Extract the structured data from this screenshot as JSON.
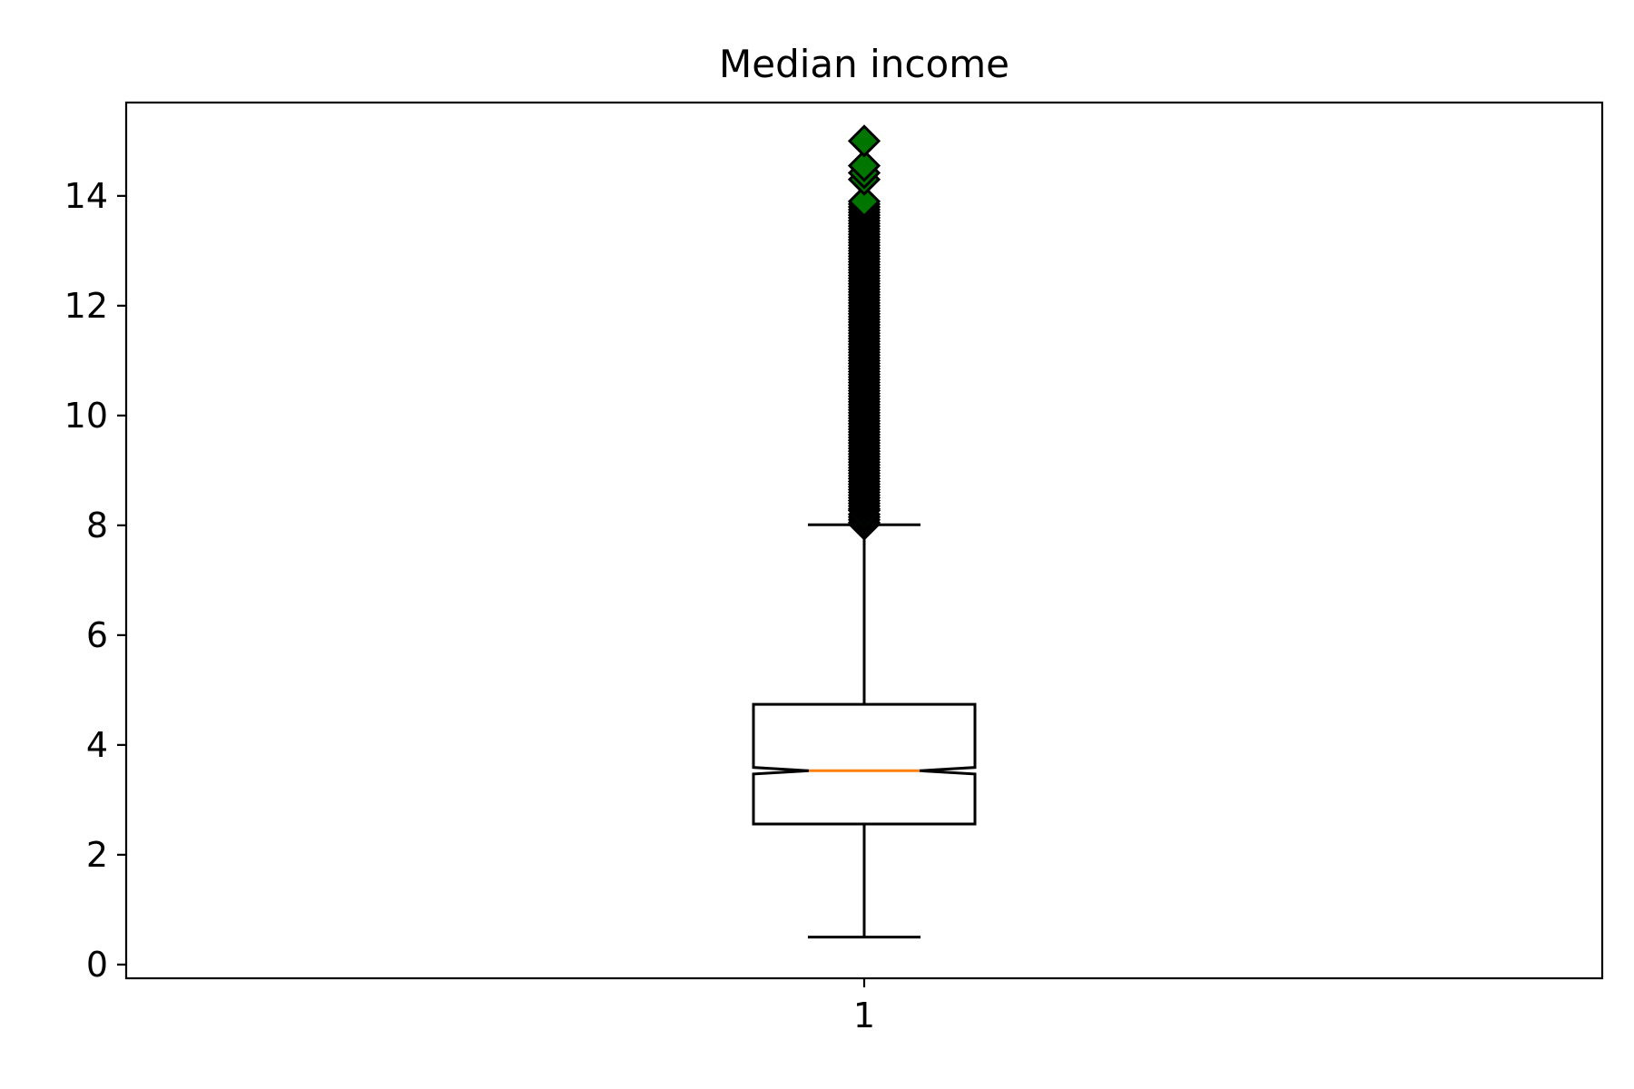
{
  "chart_data": {
    "type": "boxplot",
    "title": "Median income",
    "xlabel": "",
    "ylabel": "",
    "categories": [
      "1"
    ],
    "ylim": [
      -0.25,
      15.7
    ],
    "yticks": [
      0,
      2,
      4,
      6,
      8,
      10,
      12,
      14
    ],
    "grid": false,
    "notch": true,
    "boxes": [
      {
        "label": "1",
        "whisker_low": 0.5,
        "q1": 2.56,
        "median": 3.53,
        "q3": 4.74,
        "whisker_high": 8.01,
        "notch_low": 3.47,
        "notch_high": 3.59,
        "outliers": [
          8.02,
          8.05,
          8.1,
          8.15,
          8.2,
          8.27,
          8.3,
          8.35,
          8.4,
          8.45,
          8.5,
          8.55,
          8.6,
          8.65,
          8.7,
          8.75,
          8.8,
          8.85,
          8.9,
          8.95,
          9.0,
          9.05,
          9.1,
          9.15,
          9.2,
          9.25,
          9.3,
          9.35,
          9.4,
          9.45,
          9.5,
          9.55,
          9.6,
          9.65,
          9.7,
          9.75,
          9.8,
          9.85,
          9.9,
          9.95,
          10.0,
          10.05,
          10.1,
          10.15,
          10.2,
          10.25,
          10.3,
          10.35,
          10.4,
          10.45,
          10.5,
          10.55,
          10.6,
          10.65,
          10.7,
          10.75,
          10.8,
          10.85,
          10.9,
          10.95,
          11.0,
          11.05,
          11.1,
          11.15,
          11.2,
          11.25,
          11.3,
          11.35,
          11.4,
          11.45,
          11.5,
          11.55,
          11.6,
          11.65,
          11.7,
          11.75,
          11.8,
          11.85,
          11.9,
          11.95,
          12.0,
          12.05,
          12.1,
          12.15,
          12.2,
          12.25,
          12.3,
          12.35,
          12.4,
          12.45,
          12.5,
          12.55,
          12.6,
          12.65,
          12.7,
          12.75,
          12.8,
          12.85,
          12.9,
          12.95,
          13.0,
          13.05,
          13.1,
          13.15,
          13.2,
          13.25,
          13.3,
          13.35,
          13.4,
          13.45,
          13.5,
          13.55,
          13.6,
          13.65,
          13.7,
          13.75,
          13.8,
          13.85,
          13.9,
          14.3,
          14.42,
          14.55,
          15.0
        ]
      }
    ],
    "colors": {
      "box_edge": "#000000",
      "median_line": "#ff7f0e",
      "outlier_fill": "#007500",
      "outlier_edge": "#000000",
      "axes": "#000000",
      "background": "#ffffff"
    }
  }
}
